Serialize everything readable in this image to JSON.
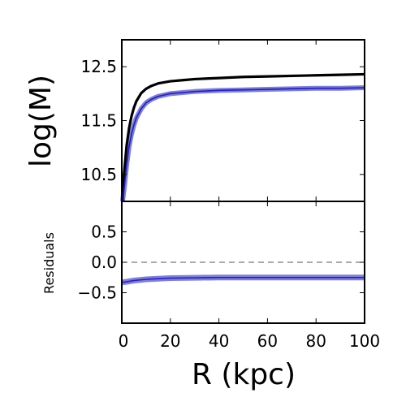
{
  "chart_data": [
    {
      "type": "line",
      "panel": "top",
      "xlabel": "",
      "ylabel": "log(M)",
      "xlim": [
        0,
        100
      ],
      "ylim": [
        10.0,
        13.0
      ],
      "yticks": [
        10.5,
        11.5,
        12.5
      ],
      "ytick_labels": [
        "10.5",
        "11.5",
        "12.5"
      ],
      "grid": false,
      "colors": {
        "model": "#000000",
        "fit": "#1f1fc8",
        "band": "#7f7fd9"
      },
      "series": [
        {
          "color": "#000000",
          "x": [
            0.3,
            1,
            2,
            3,
            4,
            5,
            6,
            8,
            10,
            12,
            15,
            20,
            25,
            30,
            40,
            50,
            60,
            70,
            80,
            90,
            100
          ],
          "y": [
            10.0,
            10.55,
            11.04,
            11.36,
            11.58,
            11.74,
            11.86,
            12.01,
            12.09,
            12.14,
            12.19,
            12.23,
            12.25,
            12.27,
            12.29,
            12.31,
            12.32,
            12.33,
            12.34,
            12.35,
            12.36
          ]
        },
        {
          "color": "#1f1fc8",
          "x": [
            0.3,
            1,
            2,
            3,
            4,
            5,
            6,
            8,
            10,
            12,
            15,
            20,
            25,
            30,
            40,
            50,
            60,
            70,
            80,
            90,
            100
          ],
          "y": [
            10.0,
            10.25,
            10.68,
            11.02,
            11.25,
            11.42,
            11.55,
            11.72,
            11.83,
            11.89,
            11.95,
            12.0,
            12.02,
            12.04,
            12.06,
            12.07,
            12.08,
            12.09,
            12.1,
            12.1,
            12.11
          ]
        }
      ]
    },
    {
      "type": "line",
      "panel": "bottom",
      "xlabel": "R (kpc)",
      "ylabel": "Residuals",
      "xlim": [
        0,
        100
      ],
      "ylim": [
        -1.0,
        1.0
      ],
      "xticks": [
        0,
        20,
        40,
        60,
        80,
        100
      ],
      "xtick_labels": [
        "0",
        "20",
        "40",
        "60",
        "80",
        "100"
      ],
      "yticks": [
        -0.5,
        0.0,
        0.5
      ],
      "ytick_labels": [
        "−0.5",
        "0.0",
        "0.5"
      ],
      "reference_line": {
        "y": 0.0,
        "style": "dashed"
      },
      "grid": false,
      "series": [
        {
          "color": "#1f1fc8",
          "x": [
            0.3,
            2,
            5,
            10,
            15,
            20,
            30,
            40,
            60,
            80,
            100
          ],
          "y": [
            -0.33,
            -0.32,
            -0.3,
            -0.28,
            -0.27,
            -0.26,
            -0.255,
            -0.25,
            -0.25,
            -0.25,
            -0.25
          ]
        }
      ]
    }
  ]
}
